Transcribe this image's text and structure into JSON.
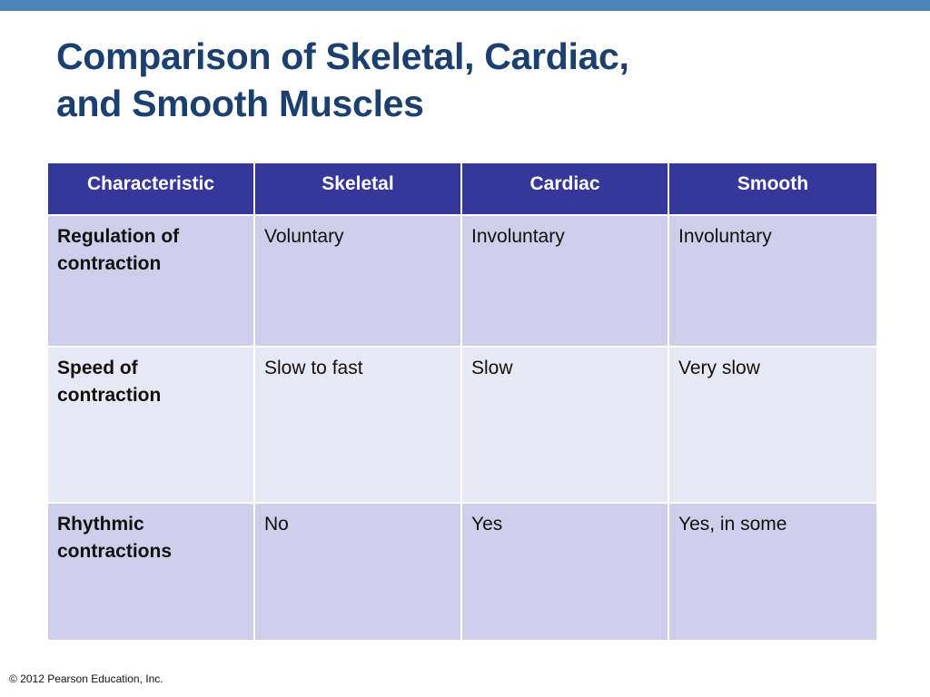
{
  "slide": {
    "title_line1": "Comparison of Skeletal, Cardiac,",
    "title_line2": "and Smooth Muscles",
    "copyright": "© 2012 Pearson Education, Inc.",
    "colors": {
      "top_bar": "#4a86b8",
      "title": "#1b3f6e",
      "header_bg": "#36379a",
      "row_odd": "#cfcfeb",
      "row_even": "#e8e8f5"
    }
  },
  "table": {
    "headers": [
      "Characteristic",
      "Skeletal",
      "Cardiac",
      "Smooth"
    ],
    "rows": [
      {
        "label": "Regulation of contraction",
        "cells": [
          "Voluntary",
          "Involuntary",
          "Involuntary"
        ]
      },
      {
        "label": "Speed of contraction",
        "cells": [
          "Slow to fast",
          "Slow",
          "Very slow"
        ]
      },
      {
        "label": "Rhythmic contractions",
        "cells": [
          "No",
          "Yes",
          "Yes, in some"
        ]
      }
    ]
  }
}
